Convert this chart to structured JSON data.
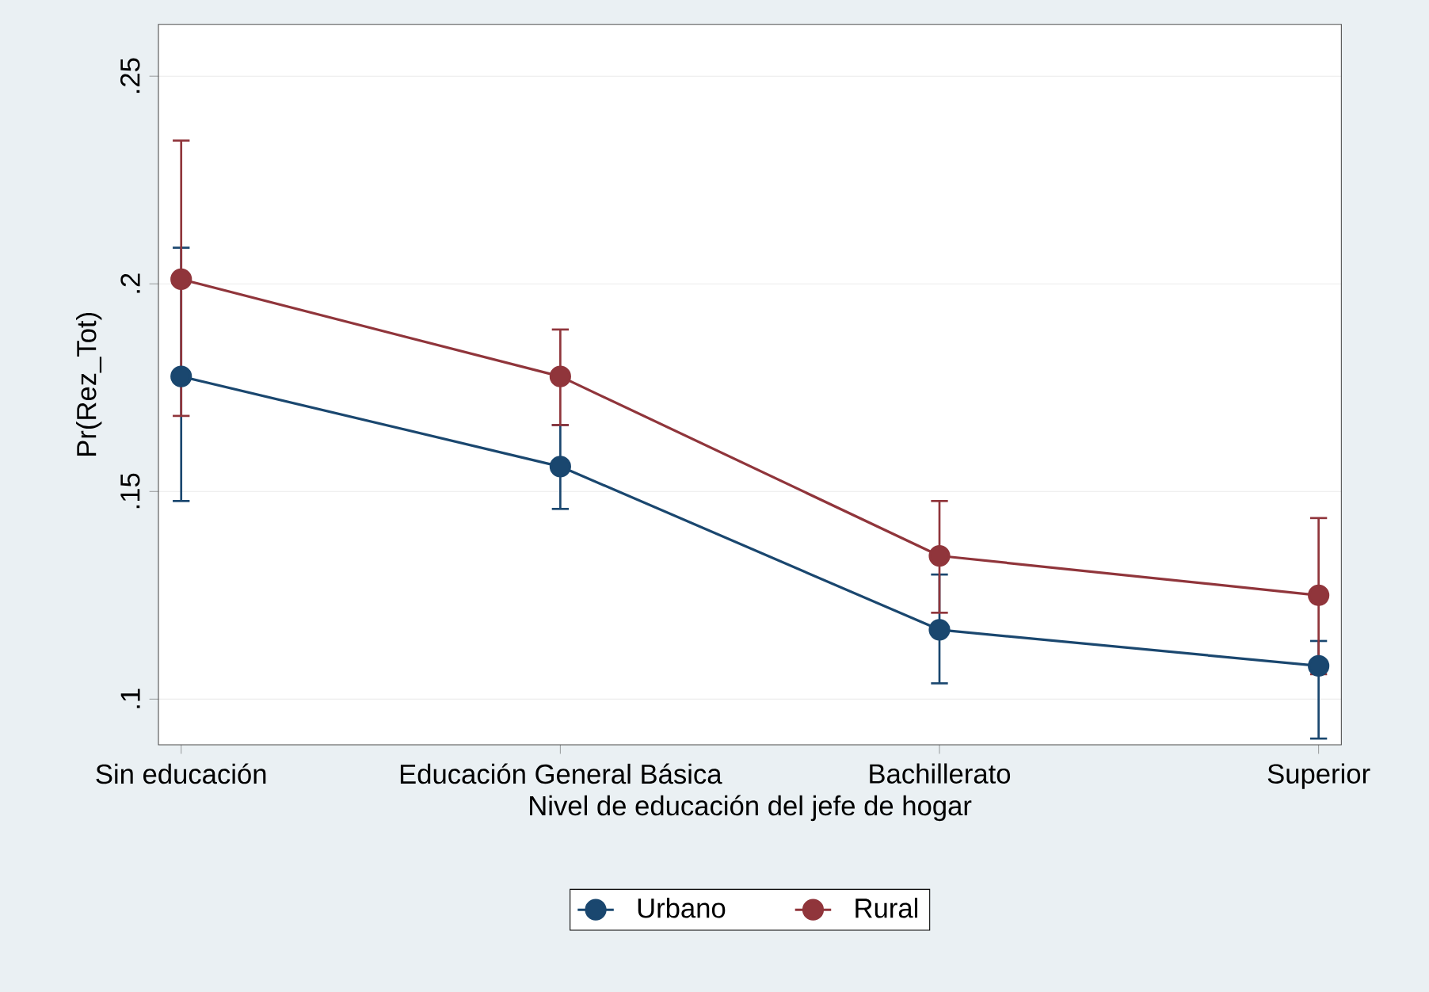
{
  "chart_data": {
    "type": "line",
    "xlabel": "Nivel de educación del jefe de hogar",
    "ylabel": "Pr(Rez_Tot)",
    "categories": [
      "Sin educación",
      "Educación General Básica",
      "Bachillerato",
      "Superior"
    ],
    "series": [
      {
        "name": "Urbano",
        "color": "#1a476f",
        "values": [
          0.1777,
          0.156,
          0.1167,
          0.108
        ],
        "errors": [
          [
            0.1477,
            0.2087
          ],
          [
            0.1458,
            0.166
          ],
          [
            0.1038,
            0.13
          ],
          [
            0.0905,
            0.114
          ]
        ]
      },
      {
        "name": "Rural",
        "color": "#90353b",
        "values": [
          0.2011,
          0.1777,
          0.1345,
          0.125
        ],
        "errors": [
          [
            0.1682,
            0.2345
          ],
          [
            0.166,
            0.189
          ],
          [
            0.1208,
            0.1477
          ],
          [
            0.106,
            0.1436
          ]
        ]
      }
    ],
    "ylim": [
      0.089,
      0.2625
    ],
    "yticks": [
      {
        "value": 0.1,
        "label": ".1"
      },
      {
        "value": 0.15,
        "label": ".15"
      },
      {
        "value": 0.2,
        "label": ".2"
      },
      {
        "value": 0.25,
        "label": ".25"
      }
    ],
    "grid": "y",
    "legend": "bottom",
    "marker": "circle",
    "line_style": "solid"
  }
}
